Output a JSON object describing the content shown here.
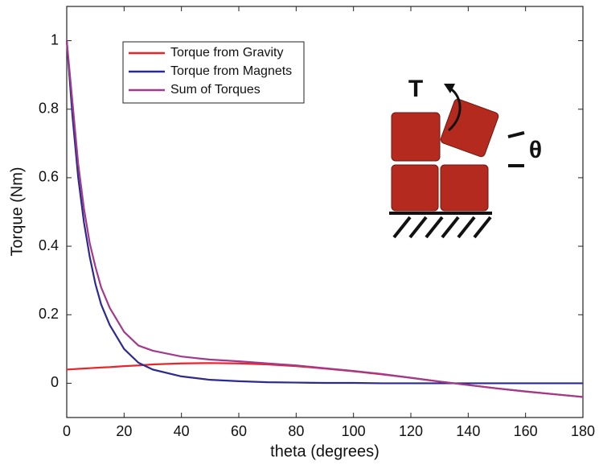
{
  "chart_data": {
    "type": "line",
    "xlabel": "theta (degrees)",
    "ylabel": "Torque (Nm)",
    "x": [
      0,
      2,
      4,
      6,
      8,
      10,
      12,
      15,
      20,
      25,
      30,
      40,
      50,
      60,
      70,
      80,
      90,
      100,
      110,
      120,
      130,
      140,
      150,
      160,
      170,
      180
    ],
    "series": [
      {
        "name": "Torque from Gravity",
        "color": "#e8262a",
        "values": [
          0.04,
          0.041,
          0.042,
          0.043,
          0.044,
          0.045,
          0.046,
          0.047,
          0.05,
          0.052,
          0.055,
          0.058,
          0.059,
          0.058,
          0.055,
          0.05,
          0.043,
          0.035,
          0.026,
          0.016,
          0.005,
          -0.005,
          -0.015,
          -0.024,
          -0.032,
          -0.04
        ]
      },
      {
        "name": "Torque from Magnets",
        "color": "#2b2a8f",
        "values": [
          1.0,
          0.78,
          0.6,
          0.47,
          0.37,
          0.29,
          0.23,
          0.17,
          0.1,
          0.06,
          0.04,
          0.02,
          0.01,
          0.006,
          0.003,
          0.002,
          0.001,
          0.001,
          0,
          0,
          0,
          0,
          0,
          0,
          0,
          0
        ]
      },
      {
        "name": "Sum of Torques",
        "color": "#a23a8c",
        "values": [
          1.0,
          0.82,
          0.64,
          0.51,
          0.41,
          0.34,
          0.28,
          0.22,
          0.15,
          0.11,
          0.095,
          0.078,
          0.069,
          0.064,
          0.058,
          0.052,
          0.044,
          0.036,
          0.027,
          0.016,
          0.005,
          -0.005,
          -0.015,
          -0.024,
          -0.032,
          -0.04
        ]
      }
    ],
    "xlim": [
      0,
      180
    ],
    "xticks": [
      0,
      20,
      40,
      60,
      80,
      100,
      120,
      140,
      160,
      180
    ],
    "ylim": [
      -0.1,
      1.1
    ],
    "yticks": [
      0,
      0.2,
      0.4,
      0.6,
      0.8,
      1
    ],
    "legend": "upper-left",
    "inset_labels": [
      "T",
      "θ"
    ]
  }
}
